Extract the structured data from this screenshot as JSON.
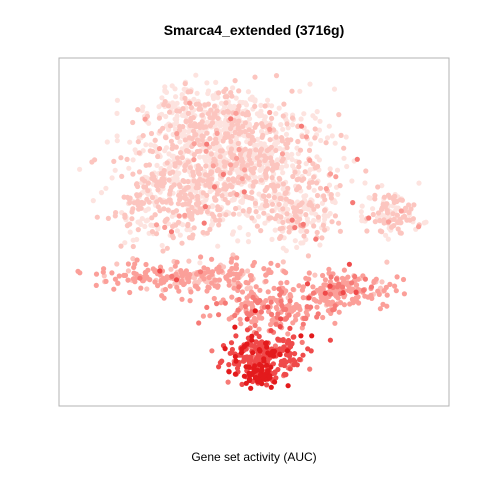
{
  "chart_data": {
    "type": "scatter",
    "title": "Smarca4_extended (3716g)",
    "xlabel": "Gene set activity (AUC)",
    "ylabel": "",
    "xlim": [
      0,
      100
    ],
    "ylim": [
      0,
      100
    ],
    "grid": false,
    "axes_ticks": false,
    "color_scale": [
      "#fde3df",
      "#fcc5bf",
      "#fb9f99",
      "#f67a76",
      "#ef4a4a",
      "#e31a1c"
    ],
    "clusters": [
      {
        "name": "",
        "center": [
          45,
          72
        ],
        "spread": [
          22,
          16
        ],
        "n": 900,
        "level": 0.08
      },
      {
        "name": "",
        "center": [
          38,
          84
        ],
        "spread": [
          14,
          8
        ],
        "n": 260,
        "level": 0.06
      },
      {
        "name": "",
        "center": [
          28,
          58
        ],
        "spread": [
          16,
          10
        ],
        "n": 300,
        "level": 0.1
      },
      {
        "name": "",
        "center": [
          62,
          56
        ],
        "spread": [
          10,
          9
        ],
        "n": 180,
        "level": 0.1
      },
      {
        "name": "",
        "center": [
          87,
          56
        ],
        "spread": [
          6,
          6
        ],
        "n": 110,
        "level": 0.12
      },
      {
        "name": "",
        "center": [
          35,
          36
        ],
        "spread": [
          22,
          4
        ],
        "n": 260,
        "level": 0.35
      },
      {
        "name": "",
        "center": [
          75,
          32
        ],
        "spread": [
          10,
          5
        ],
        "n": 160,
        "level": 0.4
      },
      {
        "name": "",
        "center": [
          55,
          26
        ],
        "spread": [
          14,
          5
        ],
        "n": 180,
        "level": 0.45
      },
      {
        "name": "",
        "center": [
          53,
          12
        ],
        "spread": [
          9,
          6
        ],
        "n": 230,
        "level": 0.8
      },
      {
        "name": "",
        "center": [
          52,
          6
        ],
        "spread": [
          4,
          3
        ],
        "n": 60,
        "level": 0.98
      }
    ]
  }
}
